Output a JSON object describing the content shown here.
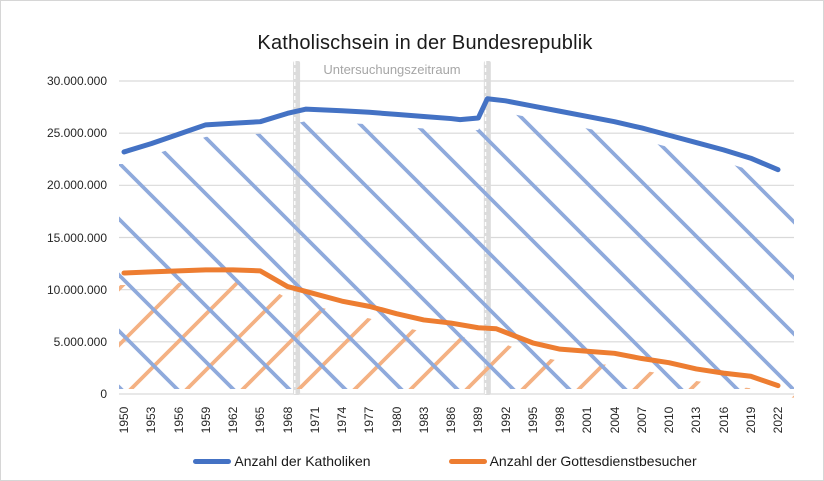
{
  "chart_data": {
    "type": "line",
    "title": "Katholischsein in der Bundesrepublik",
    "annotation": {
      "label": "Untersuchungszeitraum",
      "band_years": [
        1969,
        1990
      ]
    },
    "xlabel": "",
    "ylabel": "",
    "x_ticks": [
      "1950",
      "1953",
      "1956",
      "1959",
      "1962",
      "1965",
      "1968",
      "1971",
      "1974",
      "1977",
      "1980",
      "1983",
      "1986",
      "1989",
      "1992",
      "1995",
      "1998",
      "2001",
      "2004",
      "2007",
      "2010",
      "2013",
      "2016",
      "2019",
      "2022"
    ],
    "y_ticks": [
      0,
      5000000,
      10000000,
      15000000,
      20000000,
      25000000,
      30000000
    ],
    "y_tick_labels": [
      "0",
      "5.000.000",
      "10.000.000",
      "15.000.000",
      "20.000.000",
      "25.000.000",
      "30.000.000"
    ],
    "ylim": [
      0,
      30000000
    ],
    "grid": true,
    "legend_position": "bottom",
    "series": [
      {
        "name": "Anzahl der Katholiken",
        "color": "#4472C4",
        "hatch_color": "#8FAADC",
        "hatch_direction": "down",
        "points": [
          [
            1950,
            23200000
          ],
          [
            1953,
            24000000
          ],
          [
            1956,
            24900000
          ],
          [
            1959,
            25800000
          ],
          [
            1962,
            25950000
          ],
          [
            1965,
            26100000
          ],
          [
            1968,
            26900000
          ],
          [
            1970,
            27300000
          ],
          [
            1974,
            27150000
          ],
          [
            1977,
            27000000
          ],
          [
            1980,
            26800000
          ],
          [
            1983,
            26600000
          ],
          [
            1986,
            26400000
          ],
          [
            1987,
            26300000
          ],
          [
            1989,
            26450000
          ],
          [
            1990,
            28300000
          ],
          [
            1992,
            28100000
          ],
          [
            1995,
            27600000
          ],
          [
            1998,
            27100000
          ],
          [
            2001,
            26600000
          ],
          [
            2004,
            26100000
          ],
          [
            2007,
            25500000
          ],
          [
            2010,
            24800000
          ],
          [
            2013,
            24100000
          ],
          [
            2016,
            23400000
          ],
          [
            2019,
            22600000
          ],
          [
            2022,
            21500000
          ]
        ]
      },
      {
        "name": "Anzahl der Gottesdienstbesucher",
        "color": "#ED7D31",
        "hatch_color": "#F4B183",
        "hatch_direction": "up",
        "points": [
          [
            1950,
            11600000
          ],
          [
            1953,
            11700000
          ],
          [
            1956,
            11800000
          ],
          [
            1959,
            11900000
          ],
          [
            1962,
            11900000
          ],
          [
            1965,
            11800000
          ],
          [
            1968,
            10300000
          ],
          [
            1971,
            9600000
          ],
          [
            1974,
            8900000
          ],
          [
            1977,
            8400000
          ],
          [
            1980,
            7700000
          ],
          [
            1983,
            7100000
          ],
          [
            1986,
            6800000
          ],
          [
            1989,
            6350000
          ],
          [
            1991,
            6250000
          ],
          [
            1995,
            4900000
          ],
          [
            1998,
            4300000
          ],
          [
            2001,
            4100000
          ],
          [
            2004,
            3900000
          ],
          [
            2007,
            3400000
          ],
          [
            2010,
            3000000
          ],
          [
            2013,
            2400000
          ],
          [
            2016,
            2000000
          ],
          [
            2019,
            1700000
          ],
          [
            2022,
            800000
          ]
        ]
      }
    ]
  },
  "colors": {
    "grid": "#D9D9D9",
    "band": "#DCDCDC",
    "band_dash": "#FFFFFF",
    "band_label": "#A6A6A6",
    "axis_text": "#262626",
    "background": "#FFFFFF",
    "border": "#D6D6D6"
  }
}
